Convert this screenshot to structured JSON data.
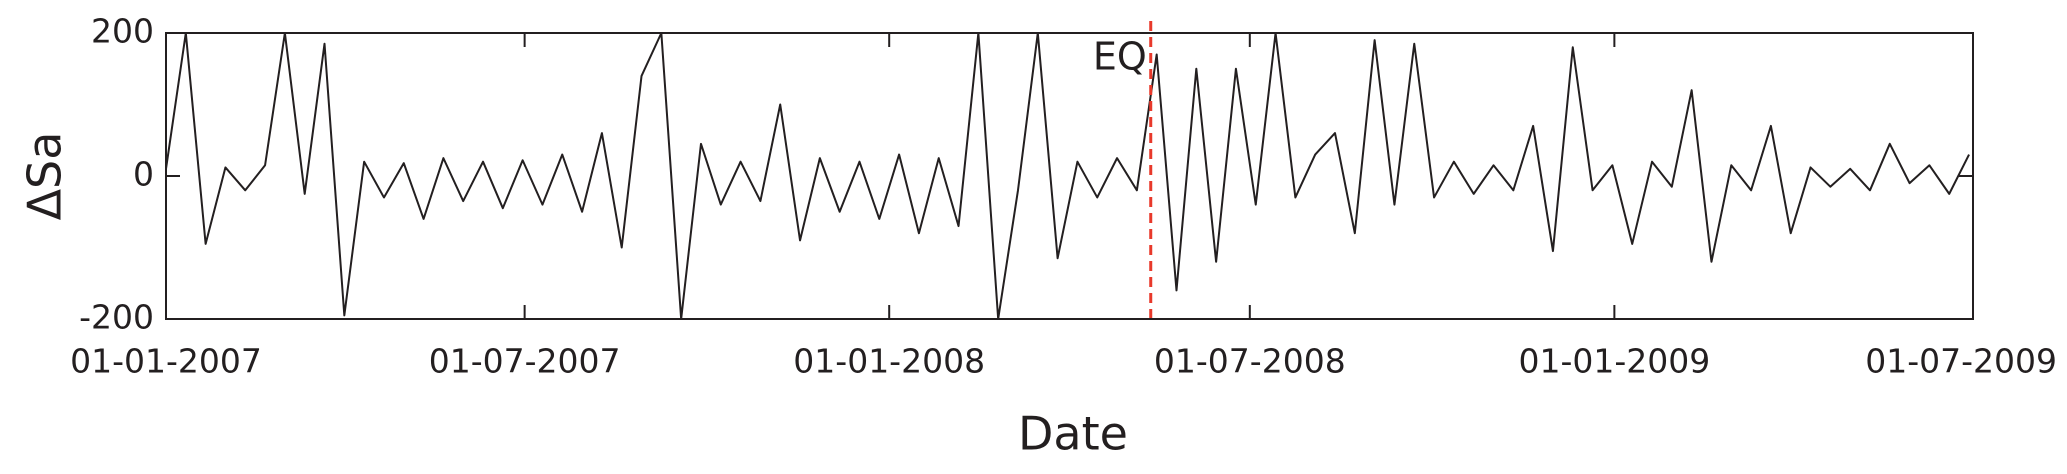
{
  "chart_data": {
    "type": "line",
    "xlabel": "Date",
    "ylabel": "ΔSa",
    "x": [
      "2007-01-01",
      "2007-01-11",
      "2007-01-21",
      "2007-01-31",
      "2007-02-10",
      "2007-02-20",
      "2007-03-02",
      "2007-03-12",
      "2007-03-22",
      "2007-04-01",
      "2007-04-11",
      "2007-04-21",
      "2007-05-01",
      "2007-05-11",
      "2007-05-21",
      "2007-05-31",
      "2007-06-10",
      "2007-06-20",
      "2007-06-30",
      "2007-07-10",
      "2007-07-20",
      "2007-07-30",
      "2007-08-09",
      "2007-08-19",
      "2007-08-29",
      "2007-09-08",
      "2007-09-18",
      "2007-09-28",
      "2007-10-08",
      "2007-10-18",
      "2007-10-28",
      "2007-11-07",
      "2007-11-17",
      "2007-11-27",
      "2007-12-07",
      "2007-12-17",
      "2007-12-27",
      "2008-01-06",
      "2008-01-16",
      "2008-01-26",
      "2008-02-05",
      "2008-02-15",
      "2008-02-25",
      "2008-03-06",
      "2008-03-16",
      "2008-03-26",
      "2008-04-05",
      "2008-04-15",
      "2008-04-25",
      "2008-05-05",
      "2008-05-15",
      "2008-05-25",
      "2008-06-04",
      "2008-06-14",
      "2008-06-24",
      "2008-07-04",
      "2008-07-14",
      "2008-07-24",
      "2008-08-03",
      "2008-08-13",
      "2008-08-23",
      "2008-09-02",
      "2008-09-12",
      "2008-09-22",
      "2008-10-02",
      "2008-10-12",
      "2008-10-22",
      "2008-11-01",
      "2008-11-11",
      "2008-11-21",
      "2008-12-01",
      "2008-12-11",
      "2008-12-21",
      "2008-12-31",
      "2009-01-10",
      "2009-01-20",
      "2009-01-30",
      "2009-02-09",
      "2009-02-19",
      "2009-03-01",
      "2009-03-11",
      "2009-03-21",
      "2009-03-31",
      "2009-04-10",
      "2009-04-20",
      "2009-04-30",
      "2009-05-10",
      "2009-05-20",
      "2009-05-30",
      "2009-06-09",
      "2009-06-19",
      "2009-06-29"
    ],
    "values": [
      10,
      200,
      -95,
      12,
      -20,
      15,
      200,
      -25,
      185,
      -195,
      20,
      -30,
      18,
      -60,
      25,
      -35,
      20,
      -45,
      22,
      -40,
      30,
      -50,
      60,
      -100,
      140,
      200,
      -200,
      45,
      -40,
      20,
      -35,
      100,
      -90,
      25,
      -50,
      20,
      -60,
      30,
      -80,
      25,
      -70,
      200,
      -200,
      -20,
      200,
      -115,
      20,
      -30,
      25,
      -20,
      170,
      -160,
      150,
      -120,
      150,
      -40,
      200,
      -30,
      30,
      60,
      -80,
      190,
      -40,
      185,
      -30,
      20,
      -25,
      15,
      -20,
      70,
      -105,
      180,
      -20,
      15,
      -95,
      20,
      -15,
      120,
      -120,
      15,
      -20,
      70,
      -80,
      12,
      -15,
      10,
      -20,
      45,
      -10,
      15,
      -25,
      30
    ],
    "color": "#231f20",
    "xlim": [
      "2007-01-01",
      "2009-07-01"
    ],
    "xticks": [
      {
        "value": "2007-01-01",
        "label": "01-01-2007"
      },
      {
        "value": "2007-07-01",
        "label": "01-07-2007"
      },
      {
        "value": "2008-01-01",
        "label": "01-01-2008"
      },
      {
        "value": "2008-07-01",
        "label": "01-07-2008"
      },
      {
        "value": "2009-01-01",
        "label": "01-01-2009"
      },
      {
        "value": "2009-07-01",
        "label": "01-07-2009"
      }
    ],
    "ylim": [
      -200,
      200
    ],
    "yticks": [
      -200,
      0,
      200
    ],
    "grid": false,
    "annotations": [
      {
        "text": "EQ",
        "x": "2008-05-12",
        "color": "#e8392b"
      }
    ]
  }
}
